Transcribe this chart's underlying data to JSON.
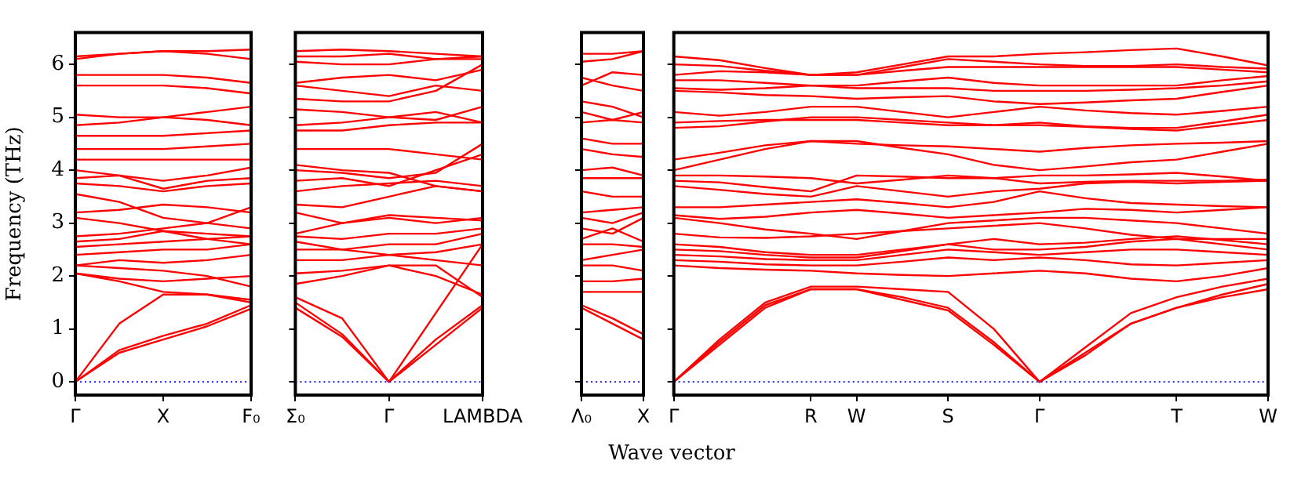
{
  "chart_data": [
    {
      "type": "line",
      "ylabel": "Frequency (THz)",
      "color": "#ff0000",
      "marker": "none",
      "line_style": "solid",
      "legend": false,
      "ylim": [
        -0.25,
        6.6
      ],
      "yticks": [
        0,
        1,
        2,
        3,
        4,
        5,
        6
      ],
      "categories": [
        "Γ",
        null,
        "X",
        null,
        "F₀"
      ],
      "ref_lines": [
        {
          "axis": "y",
          "value": 0,
          "color": "#0000ff",
          "line_style": "dotted"
        }
      ],
      "series": [
        {
          "values": [
            0,
            0.55,
            0.8,
            1.05,
            1.38
          ]
        },
        {
          "values": [
            0,
            0.6,
            0.87,
            1.1,
            1.45
          ]
        },
        {
          "values": [
            0,
            1.1,
            1.65,
            1.65,
            1.5
          ]
        },
        {
          "values": [
            2.05,
            1.9,
            1.7,
            1.65,
            1.55
          ]
        },
        {
          "values": [
            2.05,
            1.95,
            1.9,
            1.95,
            2.0
          ]
        },
        {
          "values": [
            2.2,
            2.15,
            2.1,
            2.0,
            1.8
          ]
        },
        {
          "values": [
            2.2,
            2.3,
            2.25,
            2.3,
            2.4
          ]
        },
        {
          "values": [
            2.4,
            2.45,
            2.5,
            2.5,
            2.6
          ]
        },
        {
          "values": [
            2.55,
            2.6,
            2.65,
            2.7,
            2.75
          ]
        },
        {
          "values": [
            2.65,
            2.7,
            2.85,
            2.8,
            2.75
          ]
        },
        {
          "values": [
            2.75,
            2.8,
            2.9,
            3.0,
            3.3
          ]
        },
        {
          "values": [
            3.1,
            3.0,
            2.85,
            2.7,
            2.6
          ]
        },
        {
          "values": [
            3.2,
            3.25,
            3.35,
            3.3,
            3.2
          ]
        },
        {
          "values": [
            3.55,
            3.4,
            3.1,
            3.0,
            2.9
          ]
        },
        {
          "values": [
            3.75,
            3.7,
            3.6,
            3.7,
            3.75
          ]
        },
        {
          "values": [
            3.85,
            3.9,
            3.65,
            3.8,
            3.85
          ]
        },
        {
          "values": [
            4.0,
            3.9,
            3.8,
            3.9,
            4.05
          ]
        },
        {
          "values": [
            4.2,
            4.2,
            4.2,
            4.2,
            4.2
          ]
        },
        {
          "values": [
            4.4,
            4.4,
            4.4,
            4.45,
            4.5
          ]
        },
        {
          "values": [
            4.65,
            4.65,
            4.65,
            4.7,
            4.75
          ]
        },
        {
          "values": [
            4.85,
            4.9,
            5.0,
            4.95,
            4.85
          ]
        },
        {
          "values": [
            5.05,
            5.0,
            5.0,
            5.1,
            5.2
          ]
        },
        {
          "values": [
            5.6,
            5.6,
            5.6,
            5.55,
            5.45
          ]
        },
        {
          "values": [
            5.8,
            5.8,
            5.8,
            5.75,
            5.65
          ]
        },
        {
          "values": [
            6.1,
            6.2,
            6.25,
            6.2,
            6.1
          ]
        },
        {
          "values": [
            6.15,
            6.2,
            6.25,
            6.25,
            6.28
          ]
        }
      ]
    },
    {
      "type": "line",
      "color": "#ff0000",
      "marker": "none",
      "line_style": "solid",
      "legend": false,
      "tick_labels": "x",
      "ylim": [
        -0.25,
        6.6
      ],
      "yticks": [
        0,
        1,
        2,
        3,
        4,
        5,
        6
      ],
      "categories": [
        "Σ₀",
        null,
        "Γ",
        null,
        "LAMBDA"
      ],
      "ref_lines": [
        {
          "axis": "y",
          "value": 0,
          "color": "#0000ff",
          "line_style": "dotted"
        }
      ],
      "series": [
        {
          "values": [
            1.4,
            0.85,
            0,
            0.7,
            1.4
          ]
        },
        {
          "values": [
            1.5,
            0.9,
            0,
            0.8,
            1.45
          ]
        },
        {
          "values": [
            1.6,
            1.2,
            0,
            1.3,
            2.6
          ]
        },
        {
          "values": [
            1.85,
            2.0,
            2.2,
            2.0,
            1.65
          ]
        },
        {
          "values": [
            2.05,
            2.1,
            2.2,
            2.2,
            1.6
          ]
        },
        {
          "values": [
            2.3,
            2.3,
            2.4,
            2.3,
            2.2
          ]
        },
        {
          "values": [
            2.5,
            2.5,
            2.4,
            2.45,
            2.6
          ]
        },
        {
          "values": [
            2.65,
            2.5,
            2.6,
            2.6,
            2.8
          ]
        },
        {
          "values": [
            2.75,
            2.7,
            2.8,
            2.8,
            2.9
          ]
        },
        {
          "values": [
            2.8,
            3.0,
            3.1,
            3.0,
            3.1
          ]
        },
        {
          "values": [
            3.2,
            3.0,
            3.15,
            3.1,
            3.05
          ]
        },
        {
          "values": [
            3.35,
            3.3,
            3.5,
            3.7,
            3.6
          ]
        },
        {
          "values": [
            3.6,
            3.7,
            3.75,
            3.8,
            3.7
          ]
        },
        {
          "values": [
            3.8,
            3.85,
            3.7,
            4.0,
            4.3
          ]
        },
        {
          "values": [
            4.0,
            3.95,
            3.85,
            3.95,
            4.5
          ]
        },
        {
          "values": [
            4.1,
            4.0,
            3.95,
            3.7,
            3.6
          ]
        },
        {
          "values": [
            4.4,
            4.4,
            4.4,
            4.3,
            4.2
          ]
        },
        {
          "values": [
            4.75,
            4.75,
            4.85,
            4.9,
            4.9
          ]
        },
        {
          "values": [
            4.85,
            4.9,
            5.0,
            4.95,
            5.2
          ]
        },
        {
          "values": [
            5.15,
            5.1,
            5.0,
            5.1,
            4.9
          ]
        },
        {
          "values": [
            5.35,
            5.3,
            5.3,
            5.5,
            6.0
          ]
        },
        {
          "values": [
            5.6,
            5.5,
            5.4,
            5.6,
            5.5
          ]
        },
        {
          "values": [
            5.65,
            5.75,
            5.8,
            5.7,
            5.9
          ]
        },
        {
          "values": [
            6.05,
            6.0,
            6.0,
            6.1,
            6.1
          ]
        },
        {
          "values": [
            6.15,
            6.15,
            6.2,
            6.1,
            6.15
          ]
        },
        {
          "values": [
            6.25,
            6.28,
            6.25,
            6.2,
            6.15
          ]
        }
      ]
    },
    {
      "type": "line",
      "color": "#ff0000",
      "marker": "none",
      "line_style": "solid",
      "legend": false,
      "tick_labels": "x",
      "ylim": [
        -0.25,
        6.6
      ],
      "yticks": [
        0,
        1,
        2,
        3,
        4,
        5,
        6
      ],
      "categories": [
        "Λ₀",
        null,
        "X"
      ],
      "ref_lines": [
        {
          "axis": "y",
          "value": 0,
          "color": "#0000ff",
          "line_style": "dotted"
        }
      ],
      "series": [
        {
          "values": [
            1.4,
            1.1,
            0.8
          ]
        },
        {
          "values": [
            1.45,
            1.2,
            0.9
          ]
        },
        {
          "values": [
            1.7,
            1.7,
            1.7
          ]
        },
        {
          "values": [
            1.9,
            1.9,
            1.95
          ]
        },
        {
          "values": [
            2.2,
            2.2,
            2.1
          ]
        },
        {
          "values": [
            2.3,
            2.4,
            2.5
          ]
        },
        {
          "values": [
            2.6,
            2.6,
            2.55
          ]
        },
        {
          "values": [
            2.7,
            2.9,
            2.65
          ]
        },
        {
          "values": [
            2.9,
            2.8,
            3.1
          ]
        },
        {
          "values": [
            3.1,
            3.0,
            3.2
          ]
        },
        {
          "values": [
            3.2,
            3.25,
            3.3
          ]
        },
        {
          "values": [
            3.6,
            3.5,
            3.5
          ]
        },
        {
          "values": [
            3.85,
            3.85,
            3.85
          ]
        },
        {
          "values": [
            4.0,
            4.05,
            3.9
          ]
        },
        {
          "values": [
            4.4,
            4.3,
            4.25
          ]
        },
        {
          "values": [
            4.6,
            4.5,
            4.5
          ]
        },
        {
          "values": [
            4.9,
            4.95,
            4.9
          ]
        },
        {
          "values": [
            5.1,
            4.95,
            5.1
          ]
        },
        {
          "values": [
            5.3,
            5.2,
            5.0
          ]
        },
        {
          "values": [
            5.75,
            5.6,
            5.5
          ]
        },
        {
          "values": [
            5.6,
            5.85,
            5.8
          ]
        },
        {
          "values": [
            6.05,
            6.1,
            6.25
          ]
        },
        {
          "values": [
            6.2,
            6.2,
            6.25
          ]
        }
      ]
    },
    {
      "type": "line",
      "xlabel": "Wave vector",
      "color": "#ff0000",
      "marker": "none",
      "line_style": "solid",
      "legend": false,
      "tick_labels": "x",
      "ylim": [
        -0.25,
        6.6
      ],
      "yticks": [
        0,
        1,
        2,
        3,
        4,
        5,
        6
      ],
      "categories": [
        "Γ",
        null,
        null,
        "R",
        "W",
        null,
        "S",
        null,
        "Γ",
        null,
        null,
        "T",
        null,
        "W"
      ],
      "ref_lines": [
        {
          "axis": "y",
          "value": 0,
          "color": "#0000ff",
          "line_style": "dotted"
        }
      ],
      "series": [
        {
          "values": [
            0,
            0.7,
            1.4,
            1.75,
            1.75,
            1.55,
            1.35,
            0.7,
            0,
            0.5,
            1.1,
            1.4,
            1.6,
            1.75
          ]
        },
        {
          "values": [
            0,
            0.75,
            1.45,
            1.75,
            1.75,
            1.6,
            1.4,
            0.75,
            0,
            0.55,
            1.1,
            1.4,
            1.65,
            1.85
          ]
        },
        {
          "values": [
            0,
            0.8,
            1.5,
            1.8,
            1.8,
            1.75,
            1.7,
            1.0,
            0,
            0.65,
            1.3,
            1.6,
            1.8,
            1.95
          ]
        },
        {
          "values": [
            2.2,
            2.15,
            2.12,
            2.1,
            2.05,
            2.02,
            2.0,
            2.05,
            2.1,
            2.05,
            1.95,
            1.9,
            2.0,
            2.15
          ]
        },
        {
          "values": [
            2.3,
            2.27,
            2.22,
            2.2,
            2.2,
            2.27,
            2.35,
            2.3,
            2.35,
            2.3,
            2.22,
            2.2,
            2.25,
            2.3
          ]
        },
        {
          "values": [
            2.4,
            2.37,
            2.32,
            2.3,
            2.3,
            2.4,
            2.5,
            2.45,
            2.4,
            2.45,
            2.5,
            2.5,
            2.45,
            2.4
          ]
        },
        {
          "values": [
            2.5,
            2.47,
            2.4,
            2.35,
            2.35,
            2.47,
            2.6,
            2.5,
            2.5,
            2.55,
            2.65,
            2.7,
            2.6,
            2.5
          ]
        },
        {
          "values": [
            2.6,
            2.55,
            2.45,
            2.4,
            2.4,
            2.5,
            2.6,
            2.7,
            2.6,
            2.63,
            2.7,
            2.75,
            2.68,
            2.6
          ]
        },
        {
          "values": [
            2.8,
            2.73,
            2.72,
            2.75,
            2.8,
            2.85,
            2.9,
            2.95,
            3.0,
            2.9,
            2.78,
            2.7,
            2.7,
            2.7
          ]
        },
        {
          "values": [
            3.1,
            3.0,
            2.88,
            2.8,
            2.7,
            2.85,
            3.0,
            3.05,
            3.1,
            3.1,
            3.05,
            3.0,
            2.9,
            2.8
          ]
        },
        {
          "values": [
            3.15,
            3.08,
            3.12,
            3.2,
            3.25,
            3.18,
            3.1,
            3.15,
            3.2,
            3.27,
            3.25,
            3.2,
            3.25,
            3.3
          ]
        },
        {
          "values": [
            3.3,
            3.3,
            3.35,
            3.4,
            3.45,
            3.38,
            3.3,
            3.4,
            3.6,
            3.47,
            3.38,
            3.35,
            3.32,
            3.3
          ]
        },
        {
          "values": [
            3.7,
            3.63,
            3.55,
            3.5,
            3.7,
            3.6,
            3.5,
            3.6,
            3.65,
            3.75,
            3.78,
            3.75,
            3.78,
            3.8
          ]
        },
        {
          "values": [
            3.8,
            3.77,
            3.68,
            3.6,
            3.9,
            3.88,
            3.85,
            3.85,
            3.9,
            3.9,
            3.92,
            3.95,
            3.88,
            3.8
          ]
        },
        {
          "values": [
            3.9,
            3.9,
            3.88,
            3.85,
            3.75,
            3.82,
            3.9,
            3.85,
            3.75,
            3.78,
            3.8,
            3.8,
            3.8,
            3.82
          ]
        },
        {
          "values": [
            4.0,
            4.2,
            4.4,
            4.55,
            4.55,
            4.42,
            4.3,
            4.1,
            4.0,
            4.07,
            4.15,
            4.2,
            4.35,
            4.5
          ]
        },
        {
          "values": [
            4.2,
            4.33,
            4.47,
            4.55,
            4.5,
            4.47,
            4.45,
            4.4,
            4.35,
            4.42,
            4.47,
            4.5,
            4.52,
            4.55
          ]
        },
        {
          "values": [
            4.8,
            4.83,
            4.92,
            5.0,
            5.0,
            4.95,
            4.9,
            4.85,
            4.85,
            4.82,
            4.78,
            4.75,
            4.85,
            4.95
          ]
        },
        {
          "values": [
            4.9,
            4.93,
            4.95,
            4.95,
            4.95,
            4.9,
            4.85,
            4.85,
            4.9,
            4.83,
            4.8,
            4.8,
            4.92,
            5.05
          ]
        },
        {
          "values": [
            5.1,
            5.03,
            5.1,
            5.2,
            5.2,
            5.1,
            5.0,
            5.1,
            5.2,
            5.13,
            5.08,
            5.05,
            5.12,
            5.2
          ]
        },
        {
          "values": [
            5.5,
            5.47,
            5.42,
            5.4,
            5.35,
            5.38,
            5.4,
            5.3,
            5.25,
            5.28,
            5.32,
            5.35,
            5.48,
            5.6
          ]
        },
        {
          "values": [
            5.55,
            5.52,
            5.55,
            5.6,
            5.55,
            5.55,
            5.55,
            5.5,
            5.5,
            5.5,
            5.52,
            5.55,
            5.6,
            5.68
          ]
        },
        {
          "values": [
            5.7,
            5.7,
            5.65,
            5.6,
            5.6,
            5.68,
            5.75,
            5.65,
            5.6,
            5.6,
            5.6,
            5.6,
            5.7,
            5.78
          ]
        },
        {
          "values": [
            5.8,
            5.87,
            5.85,
            5.8,
            5.8,
            5.88,
            5.95,
            5.95,
            5.95,
            5.95,
            5.95,
            5.95,
            5.9,
            5.85
          ]
        },
        {
          "values": [
            6.0,
            5.97,
            5.88,
            5.8,
            5.8,
            5.95,
            6.1,
            6.05,
            6.0,
            5.97,
            5.97,
            6.0,
            5.95,
            5.92
          ]
        },
        {
          "values": [
            6.15,
            6.08,
            5.93,
            5.8,
            5.85,
            6.0,
            6.15,
            6.15,
            6.2,
            6.23,
            6.27,
            6.3,
            6.15,
            5.98
          ]
        }
      ]
    }
  ]
}
